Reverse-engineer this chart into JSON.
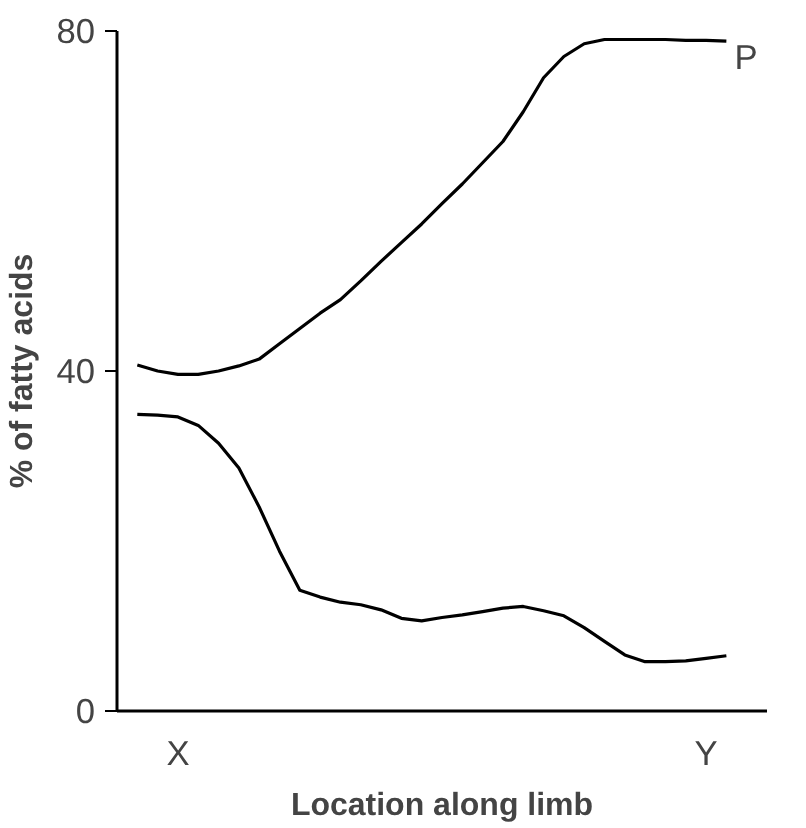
{
  "chart_data": {
    "type": "line",
    "xlabel": "Location along limb",
    "ylabel": "% of fatty acids",
    "categories": [
      null,
      null,
      "X",
      null,
      null,
      null,
      null,
      null,
      null,
      null,
      null,
      null,
      null,
      null,
      null,
      null,
      null,
      null,
      null,
      null,
      null,
      null,
      null,
      null,
      null,
      null,
      null,
      null,
      "Y",
      null
    ],
    "ylim": [
      0,
      80
    ],
    "yticks": [
      0,
      40,
      80
    ],
    "grid": false,
    "marker": "none",
    "line_style": "solid",
    "series": [
      {
        "name": "P",
        "color": "#000000",
        "values": [
          40.7,
          40.0,
          39.6,
          39.6,
          40.0,
          40.6,
          41.4,
          43.2,
          45.0,
          46.8,
          48.4,
          50.6,
          52.9,
          55.1,
          57.3,
          59.7,
          62.0,
          64.5,
          67.0,
          70.5,
          74.5,
          77,
          78.5,
          79,
          79,
          79,
          79,
          78.9,
          78.9,
          78.8
        ]
      },
      {
        "color": "#000000",
        "values": [
          34.9,
          34.8,
          34.6,
          33.6,
          31.5,
          28.6,
          24,
          18.8,
          14.2,
          13.4,
          12.8,
          12.5,
          11.9,
          10.9,
          10.6,
          11.0,
          11.3,
          11.7,
          12.1,
          12.3,
          11.8,
          11.2,
          9.8,
          8.2,
          6.6,
          5.8,
          5.8,
          5.9,
          6.2,
          6.5
        ]
      }
    ]
  }
}
